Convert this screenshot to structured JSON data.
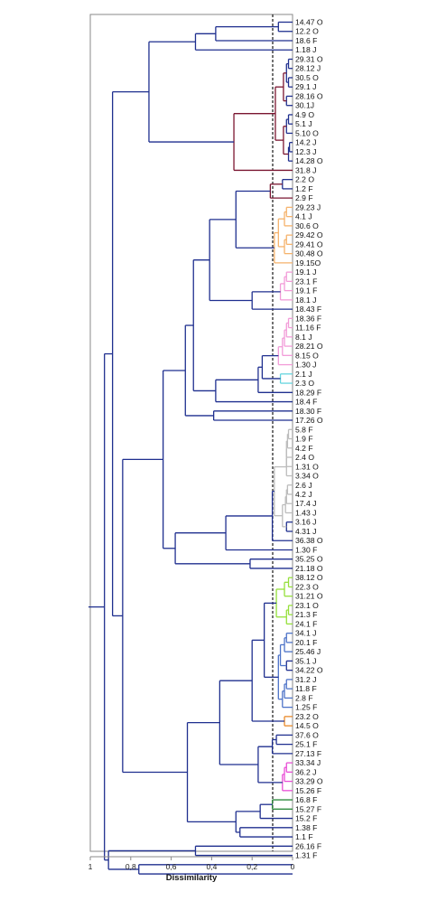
{
  "diagram": {
    "type": "dendrogram",
    "xlabel": "Dissimilarity",
    "axis": {
      "min": 0,
      "max": 1,
      "reversed": true,
      "ticks": [
        "1",
        "0,8",
        "0,6",
        "0,4",
        "0,2",
        "0"
      ],
      "tick_values": [
        1,
        0.8,
        0.6,
        0.4,
        0.2,
        0
      ]
    },
    "cut_line": 0.1,
    "colors": {
      "main": "#1f2f8f",
      "maroon": "#7a1530",
      "orange": "#f5b26b",
      "pink": "#f29bd8",
      "teal": "#66d6df",
      "gray": "#bcbcbc",
      "lime": "#95e03a",
      "blue": "#4d73c8",
      "dark_orange": "#e98a2a",
      "magenta": "#e94ed6",
      "green": "#2e8b3e"
    },
    "leaves": [
      "14.47 O",
      "12.2 O",
      "18.6 F",
      "1.18 J",
      "29.31 O",
      "28.12 J",
      "30.5 O",
      "29.1 J",
      "28.16 O",
      "30.1J",
      "4.9 O",
      "5.1 J",
      "5.10 O",
      "14.2 J",
      "12.3 J",
      "14.28 O",
      "31.8 J",
      "2.2 O",
      "1.2 F",
      "2.9 F",
      "29.23 J",
      "4.1 J",
      "30.6 O",
      "29.42 O",
      "29.41 O",
      "30.48 O",
      "19.15O",
      "19.1 J",
      "23.1 F",
      "19.1 F",
      "18.1 J",
      "18.43 F",
      "18.36 F",
      "11.16 F",
      "8.1 J",
      "28.21 O",
      "8.15 O",
      "1.30 J",
      "2.1 J",
      "2.3 O",
      "18.29 F",
      "18.4 F",
      "18.30 F",
      "17.26 O",
      "5.8 F",
      "1.9 F",
      "4.2 F",
      "2.4 O",
      "1.31 O",
      "3.34 O",
      "2.6 J",
      "4.2 J",
      "17.4 J",
      "1.43 J",
      "3.16 J",
      "4.31 J",
      "36.38 O",
      "1.30 F",
      "35.25 O",
      "21.18 O",
      "38.12 O",
      "22.3 O",
      "31.21 O",
      "23.1 O",
      "21.3 F",
      "24.1 F",
      "34.1 J",
      "20.1 F",
      "25.46 J",
      "35.1 J",
      "34.22 O",
      "31.2 J",
      "11.8 F",
      "2.8 F",
      "1.25 F",
      "23.2 O",
      "14.5 O",
      "37.6 O",
      "25.1 F",
      "27.13 F",
      "33.34 J",
      "36.2 J",
      "33.29 O",
      "15.26 F",
      "16.8 F",
      "15.27 F",
      "15.2 F",
      "1.38 F",
      "1.1 F",
      "26.16 F",
      "1.31 F"
    ]
  }
}
